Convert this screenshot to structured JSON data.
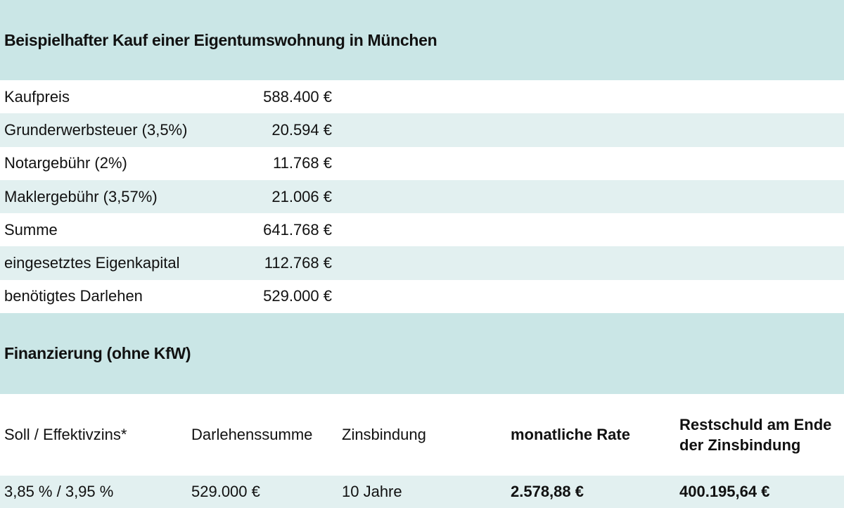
{
  "purchase": {
    "title": "Beispielhafter Kauf einer Eigentumswohnung in München",
    "rows": [
      {
        "label": "Kaufpreis",
        "value": "588.400 €"
      },
      {
        "label": "Grunderwerbsteuer (3,5%)",
        "value": "20.594 €"
      },
      {
        "label": "Notargebühr (2%)",
        "value": "11.768 €"
      },
      {
        "label": "Maklergebühr (3,57%)",
        "value": "21.006 €"
      },
      {
        "label": "Summe",
        "value": "641.768 €"
      },
      {
        "label": "eingesetztes Eigenkapital",
        "value": "112.768 €"
      },
      {
        "label": "benötigtes Darlehen",
        "value": "529.000 €"
      }
    ]
  },
  "financing": {
    "title": "Finanzierung (ohne KfW)",
    "headers": {
      "rate": "Soll / Effektivzins*",
      "loan_amount": "Darlehenssumme",
      "fixed_period": "Zinsbindung",
      "monthly_rate": "monatliche Rate",
      "residual_debt": "Restschuld am Ende der Zinsbindung"
    },
    "row": {
      "rate": "3,85 % / 3,95 %",
      "loan_amount": "529.000 €",
      "fixed_period": "10 Jahre",
      "monthly_rate": "2.578,88 €",
      "residual_debt": "400.195,64 €"
    }
  },
  "colors": {
    "header_bg": "#cae6e6",
    "alt_row_bg": "#e2f0f0",
    "row_bg": "#ffffff"
  }
}
